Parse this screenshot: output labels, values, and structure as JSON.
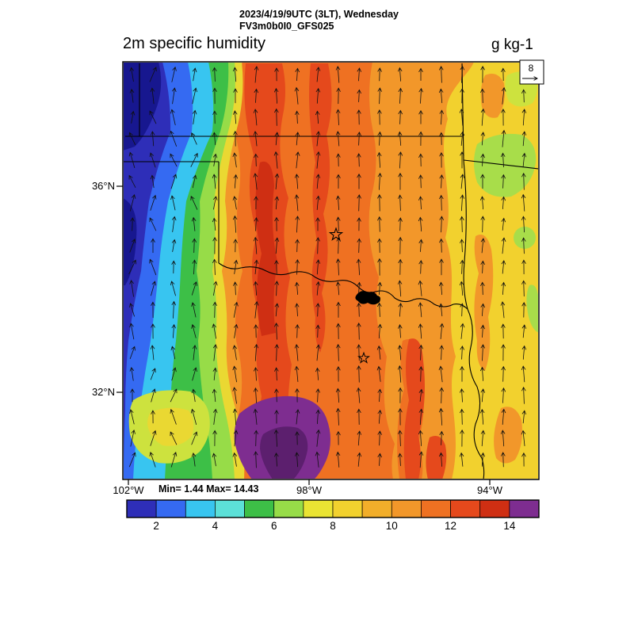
{
  "header": {
    "datetime_line": "2023/4/19/9UTC (3LT), Wednesday",
    "model_line": "FV3m0b0I0_GFS025",
    "variable_title": "2m specific humidity",
    "units_label": "g kg-1"
  },
  "map_labels": {
    "lat": [
      "36°N",
      "32°N"
    ],
    "lon": [
      "102°W",
      "98°W",
      "94°W"
    ],
    "stats": "Min= 1.44 Max= 14.43"
  },
  "chart_data": {
    "type": "heatmap",
    "title": "2m specific humidity",
    "units": "g kg-1",
    "valid_time": "2023/4/19/9UTC (3LT), Wednesday",
    "model_run": "FV3m0b0I0_GFS025",
    "stats": {
      "min": 1.44,
      "max": 14.43
    },
    "colorbar": {
      "range": [
        1,
        15
      ],
      "ticks": [
        2,
        4,
        6,
        8,
        10,
        12,
        14
      ],
      "colors": [
        "#2e2eb8",
        "#356af2",
        "#38c5f0",
        "#5ce0d8",
        "#3dbf47",
        "#97dc48",
        "#eae433",
        "#f2d12e",
        "#f2ae2a",
        "#f2972a",
        "#ef7122",
        "#e5491c",
        "#cf2f13",
        "#7e2d90"
      ]
    },
    "axes": {
      "lat_ticks": [
        "36°N",
        "32°N"
      ],
      "lon_ticks": [
        "102°W",
        "98°W",
        "94°W"
      ]
    },
    "wind": {
      "reference_value": 8
    },
    "overlays": [
      "wind vectors",
      "state borders",
      "river boundary",
      "two star markers",
      "lake"
    ],
    "field_summary": "Very dry air (1-4 g/kg, blue) along the far west edge, sharp moisture gradient through green/yellow bands, moist plume 12-14+ g/kg (red/purple) over the central area, 7-11 g/kg (yellow/orange) across the east"
  }
}
